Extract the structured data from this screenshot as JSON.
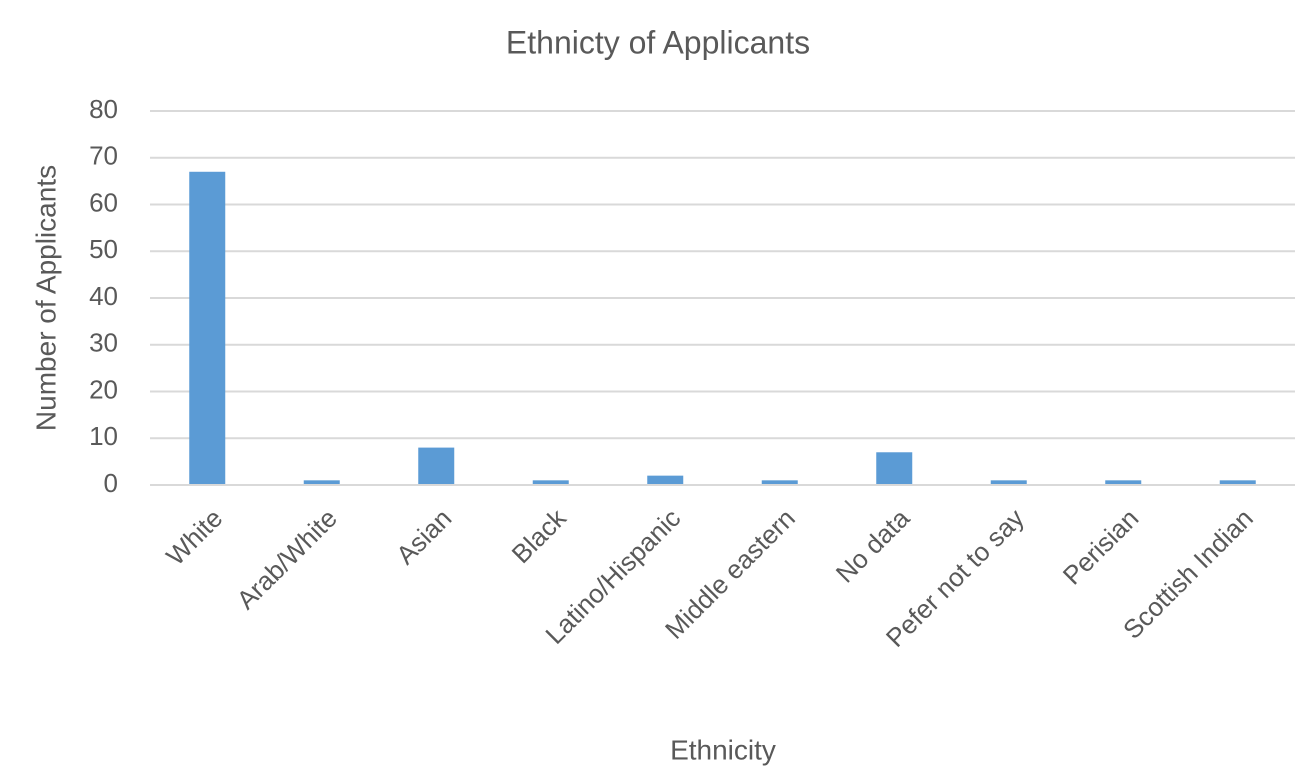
{
  "chart_data": {
    "type": "bar",
    "title": "Ethnicty of Applicants",
    "x_label": "Ethnicity",
    "y_label": "Number of Applicants",
    "categories": [
      "White",
      "Arab/White",
      "Asian",
      "Black",
      "Latino/Hispanic",
      "Middle eastern",
      "No data",
      "Pefer not to say",
      "Perisian",
      "Scottish Indian"
    ],
    "values": [
      67,
      1,
      8,
      1,
      2,
      1,
      7,
      1,
      1,
      1
    ],
    "color": "#5b9bd5",
    "ylim": [
      0,
      80
    ],
    "yticks": [
      0,
      10,
      20,
      30,
      40,
      50,
      60,
      70,
      80
    ],
    "grid": true
  }
}
